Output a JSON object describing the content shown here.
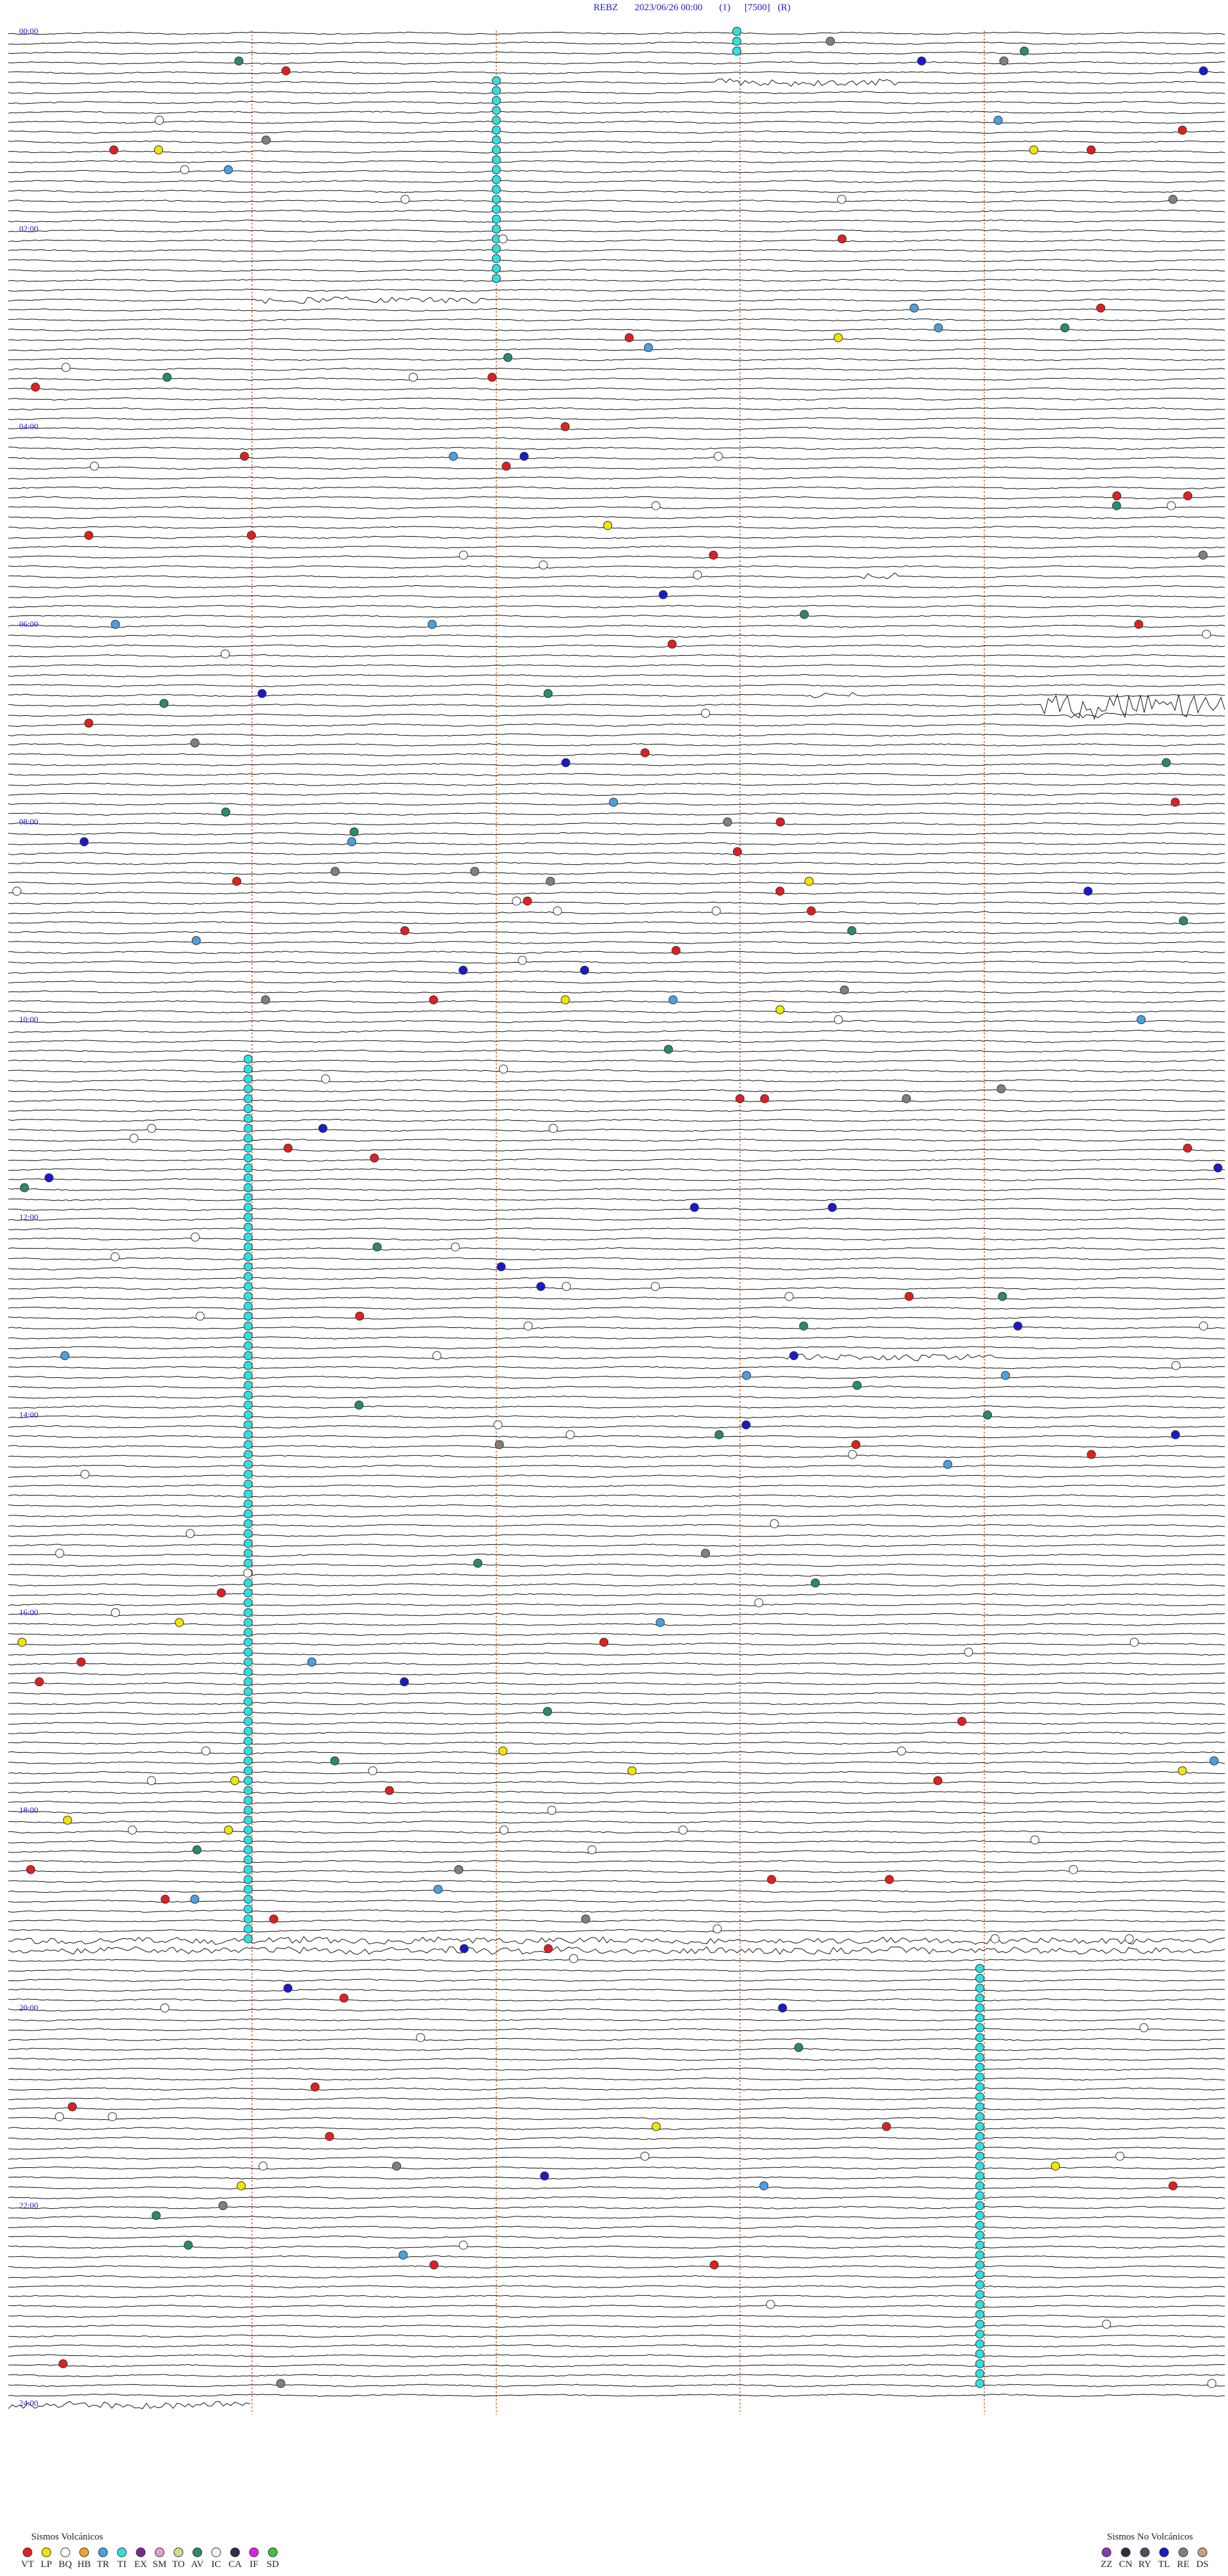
{
  "header": {
    "station": "REBZ",
    "datetime": "2023/06/26 00:00",
    "channel": "(1)",
    "scale": "[7500]",
    "flag": "(R)"
  },
  "time_labels": [
    "00:00",
    "02:00",
    "04:00",
    "06:00",
    "08:00",
    "10:00",
    "12:00",
    "14:00",
    "16:00",
    "18:00",
    "20:00",
    "22:00",
    "24:00"
  ],
  "legend_volcanic": {
    "title": "Sismos Volcánicos",
    "items": [
      {
        "label": "VT",
        "color": "#e02020"
      },
      {
        "label": "LP",
        "color": "#f2e600"
      },
      {
        "label": "BQ",
        "color": "#ffffff"
      },
      {
        "label": "HB",
        "color": "#f0a030"
      },
      {
        "label": "TR",
        "color": "#4aa0e0"
      },
      {
        "label": "TI",
        "color": "#30e0e0"
      },
      {
        "label": "EX",
        "color": "#7a2a8a"
      },
      {
        "label": "SM",
        "color": "#e0a0d0"
      },
      {
        "label": "TO",
        "color": "#d8d890"
      },
      {
        "label": "AV",
        "color": "#2a8a6a"
      },
      {
        "label": "IC",
        "color": "#f4f4f4"
      },
      {
        "label": "CA",
        "color": "#3a2a4a"
      },
      {
        "label": "IF",
        "color": "#e020e0"
      },
      {
        "label": "SD",
        "color": "#40c040"
      }
    ]
  },
  "legend_nonvolcanic": {
    "title": "Sismos No Volcánicos",
    "items": [
      {
        "label": "ZZ",
        "color": "#8a3ab0"
      },
      {
        "label": "CN",
        "color": "#303040"
      },
      {
        "label": "RY",
        "color": "#505060"
      },
      {
        "label": "TL",
        "color": "#1a1acc"
      },
      {
        "label": "RE",
        "color": "#808080"
      },
      {
        "label": "DS",
        "color": "#c8a080"
      }
    ]
  }
}
